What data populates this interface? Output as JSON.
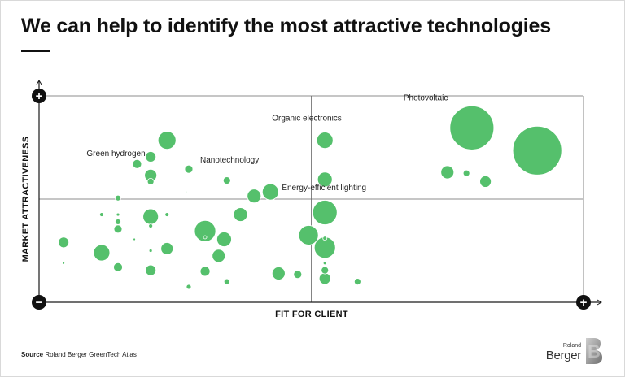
{
  "title": "We can help to identify the most attractive technologies",
  "source": {
    "label": "Source",
    "text": "Roland Berger GreenTech Atlas"
  },
  "logo": {
    "line1": "Roland",
    "line2": "Berger",
    "mark": "B"
  },
  "colors": {
    "bubble": "#55c06c",
    "axis": "#1a1a1a",
    "grid": "#666666"
  },
  "chart_data": {
    "type": "scatter",
    "title": "",
    "xlabel": "FIT FOR CLIENT",
    "ylabel": "MARKET ATTRACTIVENESS",
    "xlim": [
      0,
      100
    ],
    "ylim": [
      0,
      100
    ],
    "axis_end_symbols": {
      "y_top": "+",
      "origin": "−",
      "x_right": "+"
    },
    "quadrant_dividers": {
      "x": 50,
      "y": 50
    },
    "grid": false,
    "legend": "none",
    "points": [
      {
        "label": "Photovoltaic",
        "x": 79.5,
        "y": 84.5,
        "size": 27
      },
      {
        "label": "",
        "x": 91.5,
        "y": 73.5,
        "size": 30
      },
      {
        "label": "",
        "x": 75,
        "y": 63,
        "size": 8
      },
      {
        "label": "",
        "x": 78.5,
        "y": 62.5,
        "size": 4
      },
      {
        "label": "",
        "x": 82,
        "y": 58.5,
        "size": 7
      },
      {
        "label": "Organic electronics",
        "x": 52.5,
        "y": 78.5,
        "size": 10
      },
      {
        "label": "",
        "x": 52.5,
        "y": 59.5,
        "size": 9
      },
      {
        "label": "Energy-efficient lighting",
        "x": 42.5,
        "y": 53.5,
        "size": 10
      },
      {
        "label": "",
        "x": 39.5,
        "y": 51.5,
        "size": 8.5
      },
      {
        "label": "",
        "x": 52.5,
        "y": 43.5,
        "size": 15
      },
      {
        "label": "Green hydrogen",
        "x": 18,
        "y": 67,
        "size": 5.5
      },
      {
        "label": "",
        "x": 23.5,
        "y": 78.5,
        "size": 11
      },
      {
        "label": "",
        "x": 20.5,
        "y": 70.5,
        "size": 6.5
      },
      {
        "label": "",
        "x": 20.5,
        "y": 61.5,
        "size": 7.5
      },
      {
        "label": "",
        "x": 20.5,
        "y": 58.5,
        "size": 4
      },
      {
        "label": "Nanotechnology",
        "x": 27.5,
        "y": 64.5,
        "size": 5
      },
      {
        "label": "",
        "x": 34.5,
        "y": 59,
        "size": 4.5
      },
      {
        "label": "",
        "x": 27,
        "y": 53.5,
        "size": 1
      },
      {
        "label": "",
        "x": 14.5,
        "y": 50.5,
        "size": 3.5
      },
      {
        "label": "",
        "x": 20.5,
        "y": 41.5,
        "size": 9.5
      },
      {
        "label": "",
        "x": 23.5,
        "y": 42.5,
        "size": 2.5
      },
      {
        "label": "",
        "x": 14.5,
        "y": 42.5,
        "size": 2
      },
      {
        "label": "",
        "x": 11.5,
        "y": 42.5,
        "size": 2.5
      },
      {
        "label": "",
        "x": 14.5,
        "y": 39,
        "size": 3.5
      },
      {
        "label": "",
        "x": 14.5,
        "y": 35.5,
        "size": 5
      },
      {
        "label": "",
        "x": 20.5,
        "y": 37,
        "size": 2.5
      },
      {
        "label": "",
        "x": 30.5,
        "y": 34.5,
        "size": 13
      },
      {
        "label": "",
        "x": 30.5,
        "y": 31.5,
        "size": 2
      },
      {
        "label": "",
        "x": 37,
        "y": 42.5,
        "size": 8.5
      },
      {
        "label": "",
        "x": 34,
        "y": 30.5,
        "size": 9
      },
      {
        "label": "",
        "x": 17.5,
        "y": 30.5,
        "size": 1.5
      },
      {
        "label": "",
        "x": 20.5,
        "y": 25,
        "size": 2
      },
      {
        "label": "",
        "x": 23.5,
        "y": 26,
        "size": 7.5
      },
      {
        "label": "",
        "x": 33,
        "y": 22.5,
        "size": 8
      },
      {
        "label": "",
        "x": 4.5,
        "y": 29,
        "size": 6.5
      },
      {
        "label": "",
        "x": 4.5,
        "y": 19,
        "size": 1.5
      },
      {
        "label": "",
        "x": 11.5,
        "y": 24,
        "size": 10
      },
      {
        "label": "",
        "x": 14.5,
        "y": 17,
        "size": 5.5
      },
      {
        "label": "",
        "x": 20.5,
        "y": 15.5,
        "size": 6.5
      },
      {
        "label": "",
        "x": 30.5,
        "y": 15,
        "size": 6
      },
      {
        "label": "",
        "x": 34.5,
        "y": 10,
        "size": 3.5
      },
      {
        "label": "",
        "x": 27.5,
        "y": 7.5,
        "size": 3
      },
      {
        "label": "",
        "x": 49.5,
        "y": 32.5,
        "size": 12
      },
      {
        "label": "",
        "x": 52.5,
        "y": 31,
        "size": 2.5
      },
      {
        "label": "",
        "x": 52.5,
        "y": 26.5,
        "size": 13
      },
      {
        "label": "",
        "x": 52.5,
        "y": 19,
        "size": 2
      },
      {
        "label": "",
        "x": 52.5,
        "y": 15.5,
        "size": 4.5
      },
      {
        "label": "",
        "x": 52.5,
        "y": 11.5,
        "size": 7
      },
      {
        "label": "",
        "x": 44,
        "y": 14,
        "size": 8
      },
      {
        "label": "",
        "x": 47.5,
        "y": 13.5,
        "size": 5
      },
      {
        "label": "",
        "x": 58.5,
        "y": 10,
        "size": 4
      }
    ]
  }
}
